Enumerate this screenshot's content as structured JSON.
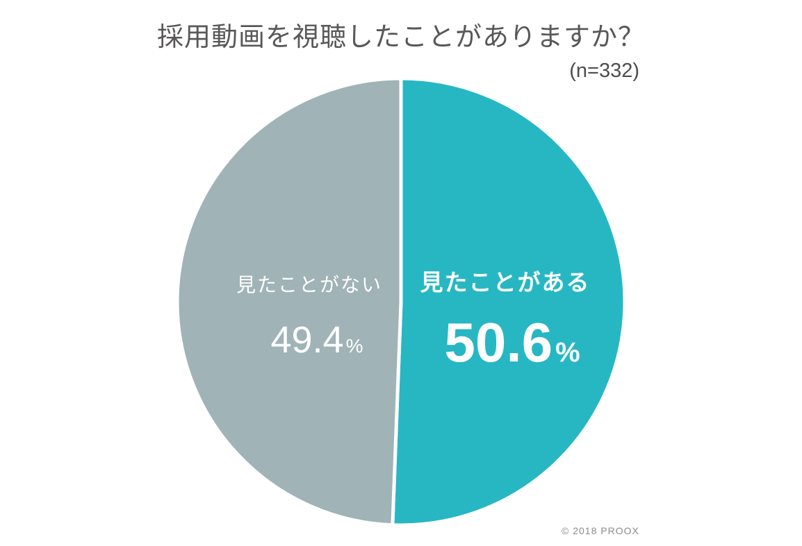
{
  "chart_data": {
    "type": "pie",
    "title": "採用動画を視聴したことがありますか？",
    "sample_size": "(n=332)",
    "unit": "%",
    "start_angle_deg": -90,
    "direction": "clockwise",
    "legend": "none",
    "label_color": "#ffffff",
    "slices": [
      {
        "key": "have-seen",
        "label": "見たことがある",
        "value": 50.6,
        "color": "#27b7c3"
      },
      {
        "key": "have-not-seen",
        "label": "見たことがない",
        "value": 49.4,
        "color": "#a0b3b6"
      }
    ],
    "slice_stroke": {
      "color": "#ffffff",
      "width": 5
    }
  },
  "footer": {
    "copyright": "© 2018 PROOX"
  }
}
